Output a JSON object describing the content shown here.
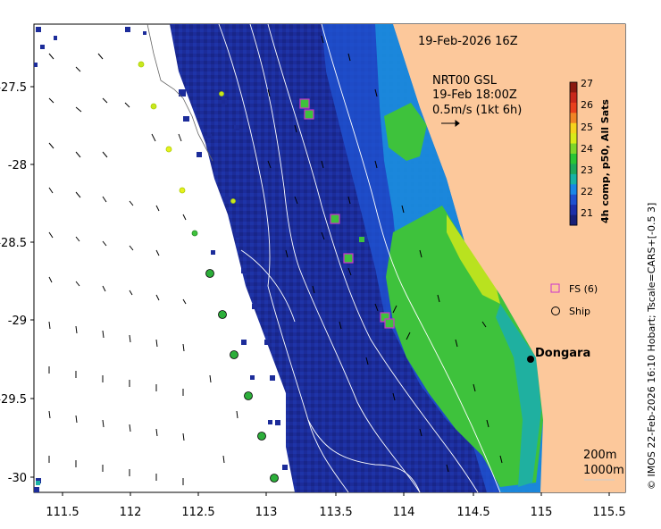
{
  "header": {
    "date_time": "19-Feb-2026 16Z",
    "current_product": "NRT00 GSL",
    "current_time": "19-Feb 18:00Z",
    "current_scale": "0.5m/s (1kt 6h)"
  },
  "colorbar": {
    "title": "4h comp, p50, All Sats",
    "ticks": [
      "27",
      "26",
      "25",
      "24",
      "23",
      "22",
      "21"
    ],
    "colors": [
      "#8b1a10",
      "#c8281a",
      "#e8401c",
      "#f08424",
      "#f5d21c",
      "#d9ea19",
      "#7fd52a",
      "#2cc435",
      "#1fa85a",
      "#19b2a5",
      "#1a86e6",
      "#1f50cf",
      "#1d2fa8",
      "#182078"
    ]
  },
  "legend": {
    "fs_label": "FS (6)",
    "ship_label": "Ship"
  },
  "place": {
    "name": "Dongara"
  },
  "isobaths": {
    "line1": "200m",
    "line2": "1000m"
  },
  "footer": {
    "credit": "© IMOS 22-Feb-2026 16:10 Hobart; Tscale=CARS+[-0.5 3]"
  },
  "axes": {
    "x_ticks": [
      "111.5",
      "112",
      "112.5",
      "113",
      "113.5",
      "114",
      "114.5",
      "115",
      "115.5"
    ],
    "y_ticks": [
      "-27.5",
      "-28",
      "-28.5",
      "-29",
      "-29.5",
      "-30"
    ]
  },
  "colors": {
    "land": "#fcc89b",
    "ocean_deep": "#1a2a96",
    "ocean_mid": "#1f4fd0",
    "coastal_green": "#3ec23c",
    "coastal_yellow": "#dce91e",
    "fs_marker": "#cc33cc",
    "ship_fill": "#2cae3a"
  },
  "markers": {
    "fs_count": 6,
    "drifters_count": 13
  }
}
